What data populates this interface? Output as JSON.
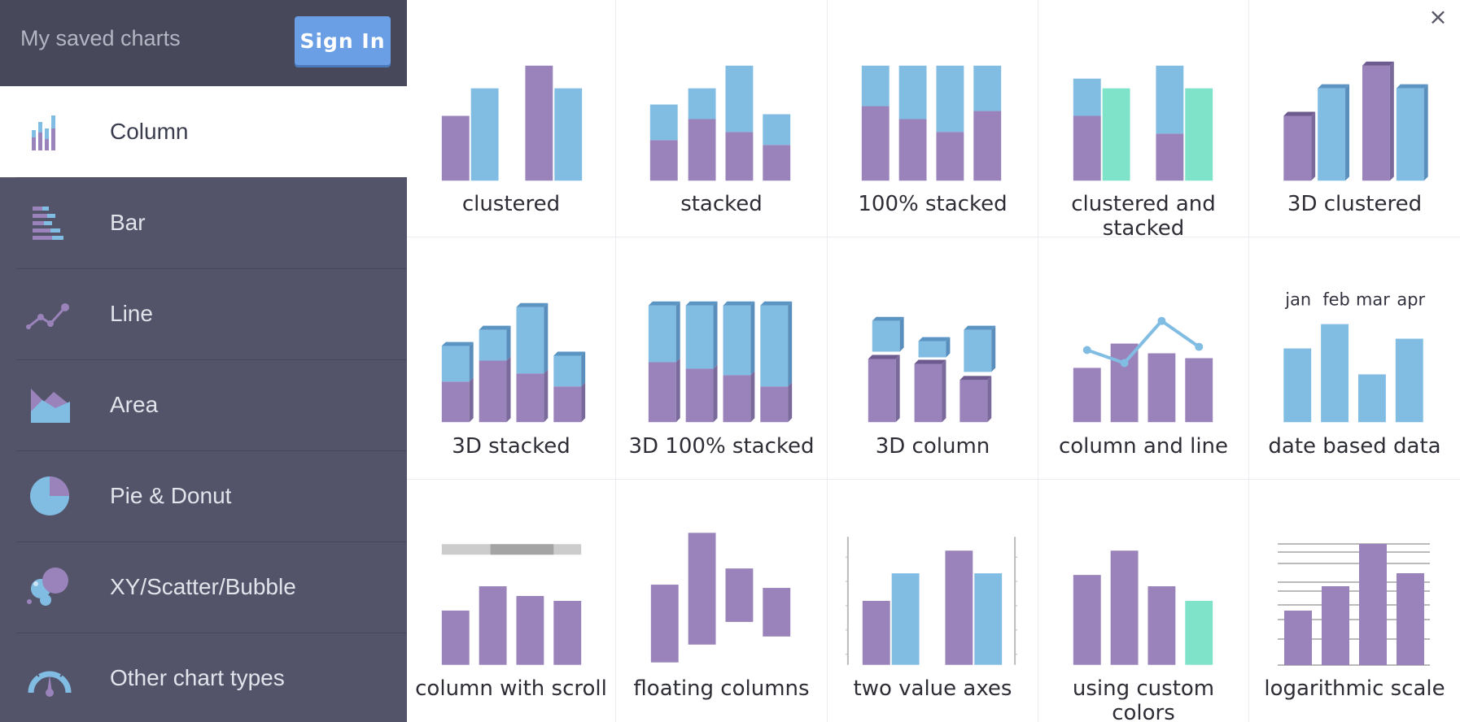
{
  "header": {
    "saved_charts_label": "My saved charts",
    "sign_in_label": "Sign In"
  },
  "close_glyph": "×",
  "colors": {
    "purple": "#9a83ba",
    "blue": "#81bce3",
    "teal": "#7ee3c9",
    "sidebar": "#535469",
    "header": "#48485b",
    "accent": "#6a9ee5"
  },
  "sidebar": {
    "items": [
      {
        "label": "Column",
        "icon": "column-chart-icon",
        "active": true
      },
      {
        "label": "Bar",
        "icon": "bar-chart-icon",
        "active": false
      },
      {
        "label": "Line",
        "icon": "line-chart-icon",
        "active": false
      },
      {
        "label": "Area",
        "icon": "area-chart-icon",
        "active": false
      },
      {
        "label": "Pie & Donut",
        "icon": "pie-chart-icon",
        "active": false
      },
      {
        "label": "XY/Scatter/Bubble",
        "icon": "scatter-bubble-icon",
        "active": false
      },
      {
        "label": "Other chart types",
        "icon": "gauge-icon",
        "active": false
      }
    ]
  },
  "gallery": {
    "items": [
      {
        "label": "clustered",
        "icon": "clustered-column-icon"
      },
      {
        "label": "stacked",
        "icon": "stacked-column-icon"
      },
      {
        "label": "100% stacked",
        "icon": "percent-stacked-column-icon"
      },
      {
        "label": "clustered and stacked",
        "icon": "clustered-stacked-column-icon"
      },
      {
        "label": "3D clustered",
        "icon": "3d-clustered-column-icon"
      },
      {
        "label": "3D stacked",
        "icon": "3d-stacked-column-icon"
      },
      {
        "label": "3D 100% stacked",
        "icon": "3d-percent-stacked-column-icon"
      },
      {
        "label": "3D column",
        "icon": "3d-column-icon"
      },
      {
        "label": "column and line",
        "icon": "column-and-line-icon"
      },
      {
        "label": "date based data",
        "icon": "date-based-column-icon",
        "month_labels": [
          "jan",
          "feb",
          "mar",
          "apr"
        ]
      },
      {
        "label": "column with scroll",
        "icon": "column-with-scroll-icon"
      },
      {
        "label": "floating columns",
        "icon": "floating-columns-icon"
      },
      {
        "label": "two value axes",
        "icon": "two-value-axes-icon"
      },
      {
        "label": "using custom colors",
        "icon": "custom-colors-column-icon"
      },
      {
        "label": "logarithmic scale",
        "icon": "logarithmic-scale-column-icon"
      }
    ]
  }
}
